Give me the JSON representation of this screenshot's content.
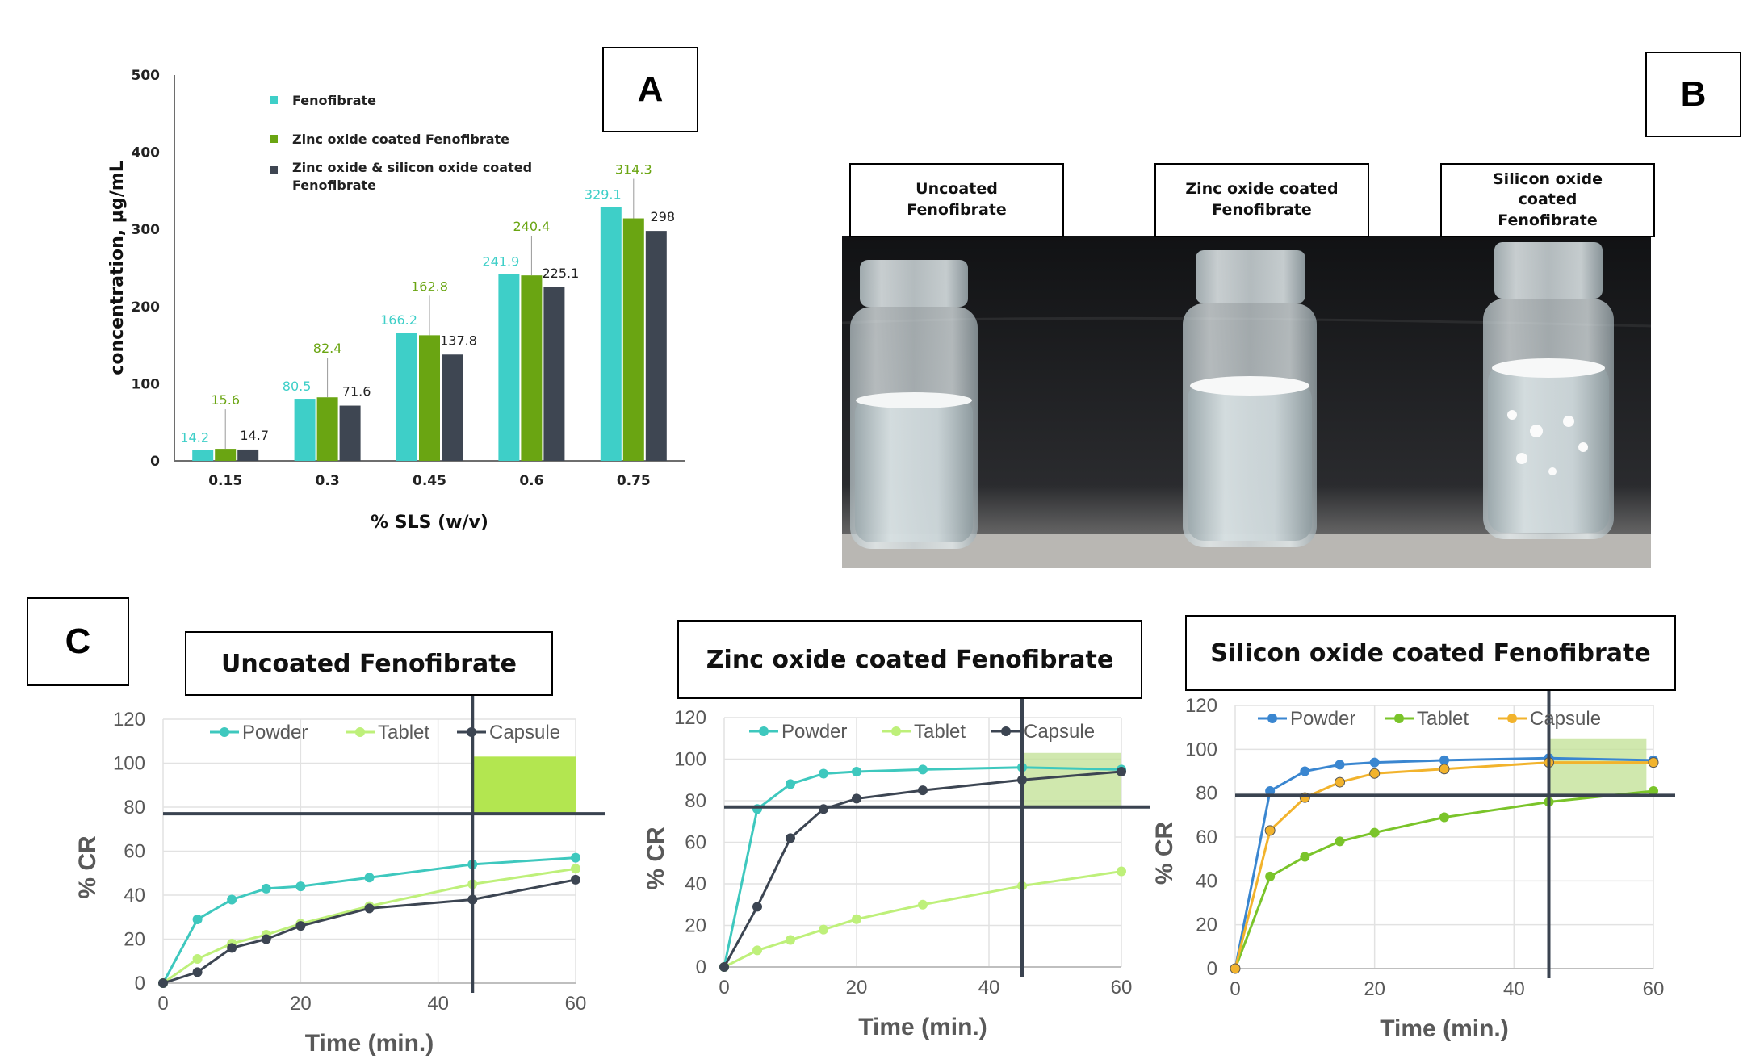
{
  "panels": {
    "a_label": "A",
    "b_label": "B",
    "c_label": "C"
  },
  "chart_data": [
    {
      "id": "A",
      "type": "bar",
      "categories": [
        "0.15",
        "0.3",
        "0.45",
        "0.6",
        "0.75"
      ],
      "xlabel": "% SLS (w/v)",
      "ylabel": "concentration, µg/mL",
      "ylim": [
        0,
        500
      ],
      "yticks": [
        "0",
        "100",
        "200",
        "300",
        "400",
        "500"
      ],
      "legend_position": "top-left",
      "series": [
        {
          "name": "Fenofibrate",
          "color": "#3ecfc8",
          "values": [
            14.2,
            80.5,
            166.2,
            241.9,
            329.1
          ],
          "labels": [
            "14.2",
            "80.5",
            "166.2",
            "241.9",
            "329.1"
          ]
        },
        {
          "name": "Zinc oxide coated Fenofibrate",
          "color": "#6aa512",
          "values": [
            15.6,
            82.4,
            162.8,
            240.4,
            314.3
          ],
          "labels": [
            "15.6",
            "82.4",
            "162.8",
            "240.4",
            "314.3"
          ]
        },
        {
          "name": "Zinc oxide & silicon oxide coated Fenofibrate",
          "color": "#3e4652",
          "values": [
            14.7,
            71.6,
            137.8,
            225.1,
            298
          ],
          "labels": [
            "14.7",
            "71.6",
            "137.8",
            "225.1",
            "298"
          ]
        }
      ]
    },
    {
      "id": "C1",
      "type": "line",
      "title": "Uncoated Fenofibrate",
      "xlabel": "Time (min.)",
      "ylabel": "% CR",
      "xlim": [
        0,
        60
      ],
      "ylim": [
        0,
        120
      ],
      "xticks": [
        "0",
        "20",
        "40",
        "60"
      ],
      "yticks": [
        "0",
        "20",
        "40",
        "60",
        "80",
        "100",
        "120"
      ],
      "hline": 77,
      "vline": 45,
      "shade": {
        "x0": 45,
        "x1": 60,
        "y0": 77,
        "y1": 103
      },
      "x": [
        0,
        5,
        10,
        15,
        20,
        30,
        45,
        60
      ],
      "series": [
        {
          "name": "Powder",
          "color": "#3ec8be",
          "values": [
            0,
            29,
            38,
            43,
            44,
            48,
            54,
            57
          ]
        },
        {
          "name": "Tablet",
          "color": "#bef07a",
          "values": [
            0,
            11,
            18,
            22,
            27,
            35,
            45,
            52
          ]
        },
        {
          "name": "Capsule",
          "color": "#3c4552",
          "values": [
            0,
            5,
            16,
            20,
            26,
            34,
            38,
            47
          ]
        }
      ]
    },
    {
      "id": "C2",
      "type": "line",
      "title": "Zinc oxide coated Fenofibrate",
      "xlabel": "Time (min.)",
      "ylabel": "% CR",
      "xlim": [
        0,
        60
      ],
      "ylim": [
        0,
        120
      ],
      "xticks": [
        "0",
        "20",
        "40",
        "60"
      ],
      "yticks": [
        "0",
        "20",
        "40",
        "60",
        "80",
        "100",
        "120"
      ],
      "hline": 77,
      "vline": 45,
      "shade": {
        "x0": 45,
        "x1": 60,
        "y0": 77,
        "y1": 103
      },
      "x": [
        0,
        5,
        10,
        15,
        20,
        30,
        45,
        60
      ],
      "series": [
        {
          "name": "Powder",
          "color": "#3ec8be",
          "values": [
            0,
            76,
            88,
            93,
            94,
            95,
            96,
            95
          ]
        },
        {
          "name": "Tablet",
          "color": "#bef07a",
          "values": [
            0,
            8,
            13,
            18,
            23,
            30,
            39,
            46
          ]
        },
        {
          "name": "Capsule",
          "color": "#3c4552",
          "values": [
            0,
            29,
            62,
            76,
            81,
            85,
            90,
            94
          ]
        }
      ]
    },
    {
      "id": "C3",
      "type": "line",
      "title": "Silicon oxide coated Fenofibrate",
      "xlabel": "Time (min.)",
      "ylabel": "% CR",
      "xlim": [
        0,
        60
      ],
      "ylim": [
        0,
        120
      ],
      "xticks": [
        "0",
        "20",
        "40",
        "60"
      ],
      "yticks": [
        "0",
        "20",
        "40",
        "60",
        "80",
        "100",
        "120"
      ],
      "hline": 79,
      "vline": 45,
      "shade": {
        "x0": 45,
        "x1": 59,
        "y0": 79,
        "y1": 105
      },
      "x": [
        0,
        5,
        10,
        15,
        20,
        30,
        45,
        60
      ],
      "series": [
        {
          "name": "Powder",
          "color": "#3a86d0",
          "values": [
            0,
            81,
            90,
            93,
            94,
            95,
            96,
            95
          ]
        },
        {
          "name": "Tablet",
          "color": "#7ac42a",
          "values": [
            0,
            42,
            51,
            58,
            62,
            69,
            76,
            81
          ]
        },
        {
          "name": "Capsule",
          "color": "#f2b32c",
          "values": [
            0,
            63,
            78,
            85,
            89,
            91,
            94,
            94
          ]
        }
      ]
    }
  ],
  "panel_b": {
    "labels": [
      "Uncoated Fenofibrate",
      "Zinc oxide coated Fenofibrate",
      "Silicon oxide coated Fenofibrate"
    ]
  }
}
